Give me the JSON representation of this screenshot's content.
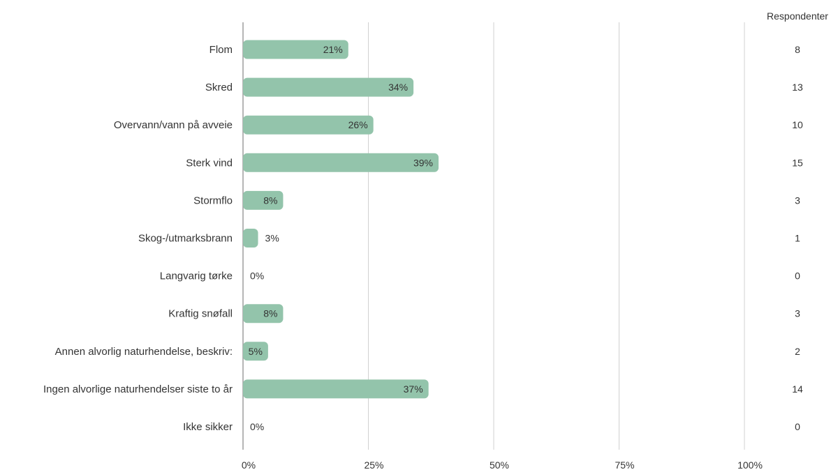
{
  "chart_data": {
    "type": "bar",
    "orientation": "horizontal",
    "categories": [
      "Flom",
      "Skred",
      "Overvann/vann på avveie",
      "Sterk vind",
      "Stormflo",
      "Skog-/utmarksbrann",
      "Langvarig tørke",
      "Kraftig snøfall",
      "Annen alvorlig naturhendelse, beskriv:",
      "Ingen alvorlige naturhendelser siste to år",
      "Ikke sikker"
    ],
    "values": [
      21,
      34,
      26,
      39,
      8,
      3,
      0,
      8,
      5,
      37,
      0
    ],
    "value_labels": [
      "21%",
      "34%",
      "26%",
      "39%",
      "8%",
      "3%",
      "0%",
      "8%",
      "5%",
      "37%",
      "0%"
    ],
    "respondents_header": "Respondenter",
    "respondents": [
      "8",
      "13",
      "10",
      "15",
      "3",
      "1",
      "0",
      "3",
      "2",
      "14",
      "0"
    ],
    "xlim": [
      0,
      100
    ],
    "xticks": [
      0,
      25,
      50,
      75,
      100
    ],
    "xtick_labels": [
      "0%",
      "25%",
      "50%",
      "75%",
      "100%"
    ],
    "grid": true,
    "bar_color": "#93c4ab",
    "grid_color": "#d0d0d0",
    "axis_color": "#9e9e9e"
  }
}
